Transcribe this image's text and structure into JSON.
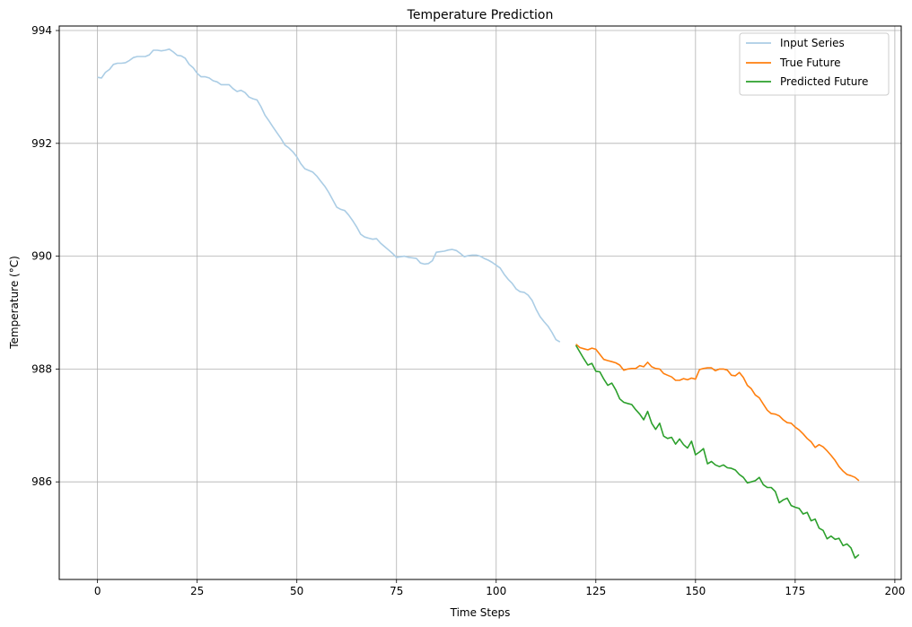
{
  "chart_data": {
    "type": "line",
    "title": "Temperature Prediction",
    "xlabel": "Time Steps",
    "ylabel": "Temperature (°C)",
    "xlim": [
      -9.6,
      201.6
    ],
    "ylim": [
      984.27,
      994.08
    ],
    "xticks": [
      0,
      25,
      50,
      75,
      100,
      125,
      150,
      175,
      200
    ],
    "yticks": [
      986,
      988,
      990,
      992,
      994
    ],
    "grid": true,
    "legend_position": "top-right",
    "series": [
      {
        "name": "Input Series",
        "color": "#abcde5",
        "x_start": 0,
        "values": [
          993.17,
          993.16,
          993.26,
          993.31,
          993.4,
          993.42,
          993.42,
          993.43,
          993.47,
          993.52,
          993.54,
          993.54,
          993.54,
          993.57,
          993.65,
          993.65,
          993.64,
          993.65,
          993.67,
          993.62,
          993.56,
          993.55,
          993.51,
          993.4,
          993.34,
          993.24,
          993.18,
          993.18,
          993.16,
          993.11,
          993.09,
          993.04,
          993.04,
          993.04,
          992.97,
          992.92,
          992.94,
          992.9,
          992.82,
          992.79,
          992.77,
          992.65,
          992.5,
          992.4,
          992.29,
          992.19,
          992.09,
          991.97,
          991.92,
          991.85,
          991.76,
          991.64,
          991.55,
          991.52,
          991.49,
          991.42,
          991.33,
          991.24,
          991.13,
          991.0,
          990.87,
          990.83,
          990.81,
          990.73,
          990.63,
          990.52,
          990.39,
          990.34,
          990.32,
          990.3,
          990.31,
          990.23,
          990.17,
          990.11,
          990.05,
          989.98,
          989.99,
          990.0,
          989.98,
          989.97,
          989.96,
          989.88,
          989.86,
          989.87,
          989.92,
          990.07,
          990.08,
          990.09,
          990.11,
          990.12,
          990.1,
          990.05,
          989.99,
          990.01,
          990.02,
          990.02,
          990.0,
          989.96,
          989.93,
          989.89,
          989.84,
          989.79,
          989.68,
          989.59,
          989.52,
          989.42,
          989.37,
          989.36,
          989.31,
          989.22,
          989.06,
          988.93,
          988.84,
          988.76,
          988.65,
          988.52,
          988.48
        ]
      },
      {
        "name": "True Future",
        "color": "#ff7f0e",
        "x_start": 120,
        "values": [
          988.44,
          988.38,
          988.36,
          988.34,
          988.37,
          988.35,
          988.26,
          988.17,
          988.15,
          988.13,
          988.11,
          988.07,
          987.98,
          988.0,
          988.01,
          988.01,
          988.06,
          988.04,
          988.12,
          988.04,
          988.01,
          988.0,
          987.92,
          987.89,
          987.86,
          987.8,
          987.8,
          987.83,
          987.81,
          987.84,
          987.82,
          987.99,
          988.01,
          988.02,
          988.02,
          987.97,
          988.0,
          988.0,
          987.98,
          987.89,
          987.88,
          987.94,
          987.85,
          987.71,
          987.65,
          987.54,
          987.49,
          987.38,
          987.27,
          987.21,
          987.2,
          987.17,
          987.1,
          987.05,
          987.04,
          986.97,
          986.92,
          986.85,
          986.77,
          986.71,
          986.61,
          986.66,
          986.62,
          986.55,
          986.47,
          986.38,
          986.27,
          986.19,
          986.13,
          986.11,
          986.08,
          986.02
        ]
      },
      {
        "name": "Predicted Future",
        "color": "#2ca02c",
        "x_start": 120,
        "values": [
          988.42,
          988.3,
          988.18,
          988.07,
          988.1,
          987.96,
          987.95,
          987.82,
          987.71,
          987.75,
          987.63,
          987.47,
          987.41,
          987.39,
          987.37,
          987.28,
          987.2,
          987.1,
          987.25,
          987.04,
          986.93,
          987.04,
          986.81,
          986.77,
          986.79,
          986.67,
          986.76,
          986.66,
          986.6,
          986.72,
          986.48,
          986.53,
          986.59,
          986.32,
          986.36,
          986.3,
          986.27,
          986.3,
          986.25,
          986.24,
          986.21,
          986.13,
          986.08,
          985.98,
          986.0,
          986.02,
          986.08,
          985.95,
          985.9,
          985.9,
          985.83,
          985.63,
          985.68,
          985.71,
          985.58,
          985.55,
          985.53,
          985.43,
          985.46,
          985.31,
          985.34,
          985.18,
          985.14,
          984.99,
          985.04,
          984.98,
          985.0,
          984.87,
          984.9,
          984.83,
          984.65,
          984.71
        ]
      }
    ]
  }
}
